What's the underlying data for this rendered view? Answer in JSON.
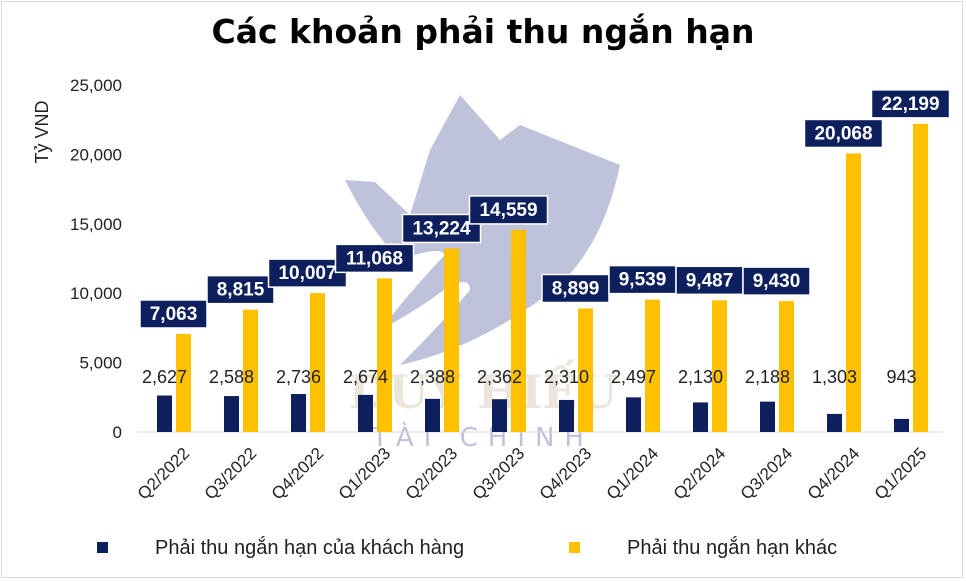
{
  "chart_data": {
    "type": "bar",
    "title": "Các khoản phải thu ngắn hạn",
    "ylabel": "Tỷ VND",
    "xlabel": "",
    "ylim": [
      0,
      25000
    ],
    "yticks": [
      "0",
      "5,000",
      "10,000",
      "15,000",
      "20,000",
      "25,000"
    ],
    "categories": [
      "Q2/2022",
      "Q3/2022",
      "Q4/2022",
      "Q1/2023",
      "Q2/2023",
      "Q3/2023",
      "Q4/2023",
      "Q1/2024",
      "Q2/2024",
      "Q3/2024",
      "Q4/2024",
      "Q1/2025"
    ],
    "series": [
      {
        "name": "Phải thu ngắn hạn của khách hàng",
        "color": "#0d1f5c",
        "values": [
          2627,
          2588,
          2736,
          2674,
          2388,
          2362,
          2310,
          2497,
          2130,
          2188,
          1303,
          943
        ],
        "labels": [
          "2,627",
          "2,588",
          "2,736",
          "2,674",
          "2,388",
          "2,362",
          "2,310",
          "2,497",
          "2,130",
          "2,188",
          "1,303",
          "943"
        ]
      },
      {
        "name": "Phải thu ngắn hạn khác",
        "color": "#ffc000",
        "values": [
          7063,
          8815,
          10007,
          11068,
          13224,
          14559,
          8899,
          9539,
          9487,
          9430,
          20068,
          22199
        ],
        "labels": [
          "7,063",
          "8,815",
          "10,007",
          "11,068",
          "13,224",
          "14,559",
          "8,899",
          "9,539",
          "9,487",
          "9,430",
          "20,068",
          "22,199"
        ]
      }
    ],
    "legend_position": "bottom",
    "label_box_color": "#0d1f5c",
    "watermark": {
      "line1": "DUY HIẾU",
      "line2": "TÀI CHÍNH",
      "color": "#1a237e"
    }
  }
}
